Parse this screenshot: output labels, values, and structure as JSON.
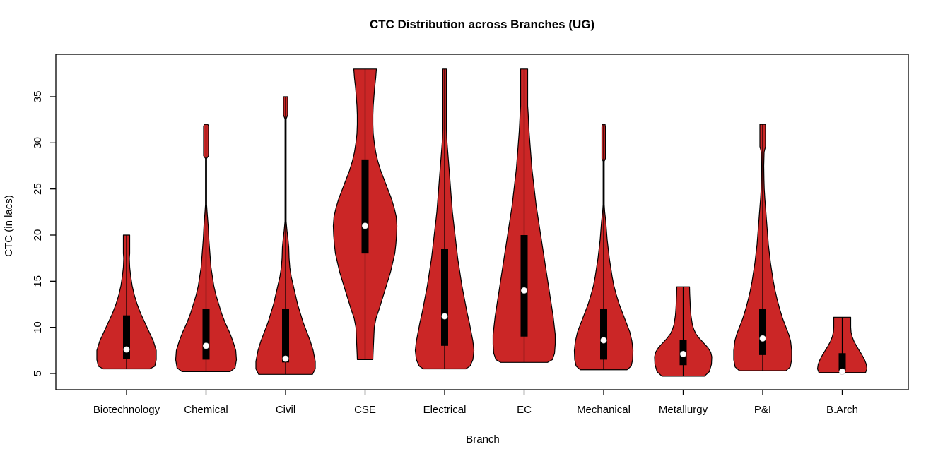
{
  "title": "CTC Distribution across Branches (UG)",
  "chart_data": {
    "type": "violin",
    "title": "CTC Distribution across Branches (UG)",
    "xlabel": "Branch",
    "ylabel": "CTC (in lacs)",
    "categories": [
      "Biotechnology",
      "Chemical",
      "Civil",
      "CSE",
      "Electrical",
      "EC",
      "Mechanical",
      "Metallurgy",
      "P&I",
      "B.Arch"
    ],
    "y_ticks": [
      5,
      10,
      15,
      20,
      25,
      30,
      35
    ],
    "ylim": [
      3.2,
      39.6
    ],
    "grid": false,
    "legend": "none",
    "colors": {
      "violin_fill": "#CB2626",
      "violin_outline": "#000000",
      "box": "#000000",
      "median_dot": "#FFFFFF",
      "axis": "#000000",
      "background": "#FFFFFF"
    },
    "series": [
      {
        "branch": "Biotechnology",
        "min": 5.5,
        "max": 20,
        "q1": 6.6,
        "median": 7.6,
        "q3": 11.3,
        "profile": [
          [
            5.5,
            33
          ],
          [
            5.8,
            40
          ],
          [
            6.5,
            42
          ],
          [
            7.5,
            42
          ],
          [
            8.5,
            38
          ],
          [
            9.5,
            32
          ],
          [
            10.5,
            26
          ],
          [
            11.5,
            20
          ],
          [
            12.5,
            15
          ],
          [
            13.5,
            11
          ],
          [
            14.5,
            8
          ],
          [
            15.5,
            6
          ],
          [
            16.5,
            4.5
          ],
          [
            17.5,
            4
          ],
          [
            18,
            4.5
          ],
          [
            20,
            4.5
          ]
        ]
      },
      {
        "branch": "Chemical",
        "min": 5.2,
        "max": 32,
        "q1": 6.5,
        "median": 8,
        "q3": 12,
        "profile": [
          [
            5.2,
            34
          ],
          [
            5.6,
            41
          ],
          [
            6.5,
            43
          ],
          [
            7.5,
            42
          ],
          [
            8.5,
            38
          ],
          [
            9.5,
            33
          ],
          [
            10.5,
            27
          ],
          [
            11.5,
            22
          ],
          [
            12.5,
            18
          ],
          [
            13.5,
            14
          ],
          [
            14.5,
            11
          ],
          [
            15.5,
            9
          ],
          [
            16.5,
            7
          ],
          [
            17.5,
            6
          ],
          [
            18.5,
            5
          ],
          [
            19.5,
            4
          ],
          [
            21,
            3
          ],
          [
            22.5,
            1.5
          ],
          [
            23.3,
            0.8
          ],
          [
            28.3,
            0.8
          ],
          [
            28.6,
            3.5
          ],
          [
            31.8,
            3.5
          ],
          [
            32,
            2.5
          ]
        ]
      },
      {
        "branch": "Civil",
        "min": 4.9,
        "max": 35,
        "q1": 6.2,
        "median": 6.6,
        "q3": 12,
        "profile": [
          [
            4.9,
            38
          ],
          [
            5.5,
            42
          ],
          [
            6.3,
            42
          ],
          [
            7.5,
            39
          ],
          [
            8.5,
            35
          ],
          [
            9.5,
            30
          ],
          [
            10.5,
            25
          ],
          [
            11.5,
            21
          ],
          [
            12.5,
            17
          ],
          [
            13.5,
            14
          ],
          [
            14.5,
            11
          ],
          [
            15.5,
            8
          ],
          [
            16.5,
            6
          ],
          [
            17.5,
            5
          ],
          [
            18.7,
            4.5
          ],
          [
            19.5,
            3.5
          ],
          [
            20.5,
            2
          ],
          [
            21.5,
            0.8
          ],
          [
            32.6,
            0.8
          ],
          [
            33,
            3
          ],
          [
            35,
            3
          ]
        ]
      },
      {
        "branch": "CSE",
        "min": 6.5,
        "max": 38,
        "q1": 18,
        "median": 21,
        "q3": 28.2,
        "profile": [
          [
            6.5,
            11
          ],
          [
            7,
            11.2
          ],
          [
            8,
            11.8
          ],
          [
            9,
            12.4
          ],
          [
            10,
            13
          ],
          [
            11,
            15.5
          ],
          [
            12,
            20
          ],
          [
            13,
            24
          ],
          [
            14,
            28
          ],
          [
            15,
            32
          ],
          [
            16,
            36
          ],
          [
            17,
            39
          ],
          [
            18,
            42
          ],
          [
            19,
            43.5
          ],
          [
            20,
            44.5
          ],
          [
            21,
            45
          ],
          [
            22,
            44
          ],
          [
            23,
            41
          ],
          [
            24,
            37
          ],
          [
            25,
            32
          ],
          [
            26,
            27
          ],
          [
            27,
            22
          ],
          [
            28,
            18
          ],
          [
            29,
            15
          ],
          [
            30,
            13
          ],
          [
            31,
            11.5
          ],
          [
            32,
            11
          ],
          [
            33,
            11
          ],
          [
            34,
            11.5
          ],
          [
            35,
            12.5
          ],
          [
            36,
            13.5
          ],
          [
            37,
            15
          ],
          [
            38,
            16
          ]
        ]
      },
      {
        "branch": "Electrical",
        "min": 5.5,
        "max": 38,
        "q1": 8,
        "median": 11.2,
        "q3": 18.5,
        "profile": [
          [
            5.5,
            30
          ],
          [
            5.8,
            36
          ],
          [
            6.5,
            40
          ],
          [
            7.5,
            41.5
          ],
          [
            8.5,
            40
          ],
          [
            9.5,
            37.5
          ],
          [
            10.5,
            35
          ],
          [
            11.5,
            32
          ],
          [
            12.5,
            29.5
          ],
          [
            13.5,
            27
          ],
          [
            14.5,
            24.5
          ],
          [
            15.5,
            22.5
          ],
          [
            16.5,
            20.5
          ],
          [
            17.5,
            18.5
          ],
          [
            18.5,
            17
          ],
          [
            19.5,
            15.5
          ],
          [
            20.5,
            14
          ],
          [
            21.5,
            12.5
          ],
          [
            22.5,
            11
          ],
          [
            23.5,
            10
          ],
          [
            24.5,
            9
          ],
          [
            25.5,
            8
          ],
          [
            26.5,
            7
          ],
          [
            27.5,
            6
          ],
          [
            28.5,
            5
          ],
          [
            29.5,
            4
          ],
          [
            30.5,
            3
          ],
          [
            31.5,
            2.5
          ],
          [
            33,
            2.5
          ],
          [
            38,
            2.5
          ]
        ]
      },
      {
        "branch": "EC",
        "min": 6.2,
        "max": 38,
        "q1": 9,
        "median": 14,
        "q3": 20,
        "profile": [
          [
            6.2,
            33
          ],
          [
            6.5,
            40
          ],
          [
            7.2,
            43
          ],
          [
            8.2,
            44
          ],
          [
            9.2,
            44
          ],
          [
            10.2,
            42.5
          ],
          [
            11.2,
            41
          ],
          [
            12.2,
            39
          ],
          [
            13.2,
            37
          ],
          [
            14.2,
            35
          ],
          [
            15.2,
            33
          ],
          [
            16.2,
            31
          ],
          [
            17.2,
            29
          ],
          [
            18.2,
            27
          ],
          [
            19.2,
            25
          ],
          [
            20.2,
            23
          ],
          [
            21.2,
            21
          ],
          [
            22.2,
            19
          ],
          [
            23.2,
            17
          ],
          [
            24.2,
            15.5
          ],
          [
            25.2,
            14
          ],
          [
            26.2,
            12.5
          ],
          [
            27.2,
            11
          ],
          [
            28.2,
            10
          ],
          [
            29.2,
            9
          ],
          [
            30.2,
            8
          ],
          [
            31.2,
            7
          ],
          [
            32.2,
            6.3
          ],
          [
            33.2,
            5.7
          ],
          [
            34,
            5
          ],
          [
            38,
            5
          ]
        ]
      },
      {
        "branch": "Mechanical",
        "min": 5.4,
        "max": 32,
        "q1": 6.5,
        "median": 8.6,
        "q3": 12,
        "profile": [
          [
            5.4,
            33
          ],
          [
            5.8,
            39
          ],
          [
            6.5,
            41
          ],
          [
            7.5,
            41.5
          ],
          [
            8.5,
            40
          ],
          [
            9.5,
            37
          ],
          [
            10.5,
            32
          ],
          [
            11.5,
            27
          ],
          [
            12.5,
            22
          ],
          [
            13.5,
            18
          ],
          [
            14.5,
            14.5
          ],
          [
            15.5,
            12
          ],
          [
            16.5,
            10
          ],
          [
            17.5,
            8
          ],
          [
            18.5,
            6.5
          ],
          [
            19.5,
            5
          ],
          [
            20.5,
            4
          ],
          [
            21.5,
            3
          ],
          [
            22.5,
            1.5
          ],
          [
            23.3,
            0.8
          ],
          [
            28,
            0.8
          ],
          [
            28.3,
            2.5
          ],
          [
            31.7,
            2.5
          ],
          [
            32,
            2
          ]
        ]
      },
      {
        "branch": "Metallurgy",
        "min": 4.7,
        "max": 14.4,
        "q1": 5.9,
        "median": 7.1,
        "q3": 8.6,
        "profile": [
          [
            4.7,
            30
          ],
          [
            5.2,
            37
          ],
          [
            6,
            40
          ],
          [
            6.8,
            40.5
          ],
          [
            7.3,
            39
          ],
          [
            7.8,
            35
          ],
          [
            8.3,
            29
          ],
          [
            8.8,
            23
          ],
          [
            9.3,
            18
          ],
          [
            9.8,
            15
          ],
          [
            10.3,
            13
          ],
          [
            10.8,
            12
          ],
          [
            11.3,
            11
          ],
          [
            11.8,
            10.5
          ],
          [
            12.4,
            10
          ],
          [
            13,
            9.7
          ],
          [
            13.6,
            9.3
          ],
          [
            14.4,
            9
          ]
        ]
      },
      {
        "branch": "P&I",
        "min": 5.3,
        "max": 32,
        "q1": 7,
        "median": 8.8,
        "q3": 12,
        "profile": [
          [
            5.3,
            33
          ],
          [
            5.7,
            39
          ],
          [
            6.5,
            41
          ],
          [
            7.5,
            41
          ],
          [
            8.5,
            39.5
          ],
          [
            9.2,
            37
          ],
          [
            10,
            33
          ],
          [
            11,
            28
          ],
          [
            12,
            24
          ],
          [
            13,
            20.5
          ],
          [
            14,
            17.5
          ],
          [
            15,
            15
          ],
          [
            16,
            13
          ],
          [
            17,
            11
          ],
          [
            18,
            9.5
          ],
          [
            19,
            8
          ],
          [
            20,
            7
          ],
          [
            21,
            6
          ],
          [
            22,
            5
          ],
          [
            23,
            4
          ],
          [
            24,
            3
          ],
          [
            25,
            2.2
          ],
          [
            26,
            1.8
          ],
          [
            27.5,
            1.5
          ],
          [
            29,
            2
          ],
          [
            29.6,
            4
          ],
          [
            32,
            4
          ]
        ]
      },
      {
        "branch": "B.Arch",
        "min": 5.1,
        "max": 11.1,
        "q1": 5.3,
        "median": 5.2,
        "q3": 7.2,
        "profile": [
          [
            5.1,
            33
          ],
          [
            5.5,
            35
          ],
          [
            6,
            34
          ],
          [
            6.5,
            31.5
          ],
          [
            7,
            28
          ],
          [
            7.5,
            24
          ],
          [
            8,
            20
          ],
          [
            8.5,
            16.5
          ],
          [
            9,
            14
          ],
          [
            9.5,
            12.5
          ],
          [
            10,
            12
          ],
          [
            10.5,
            12
          ],
          [
            11.1,
            12
          ]
        ]
      }
    ]
  }
}
